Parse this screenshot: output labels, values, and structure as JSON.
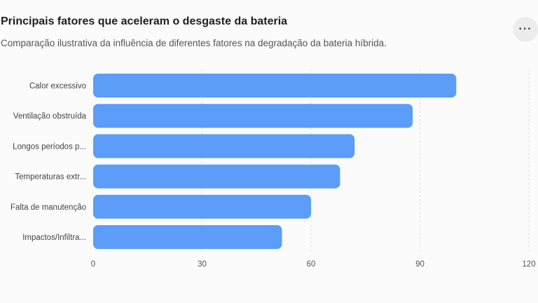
{
  "title": "Principais fatores que aceleram o desgaste da bateria",
  "subtitle": "Comparação ilustrativa da influência de diferentes fatores na degradação da bateria híbrida.",
  "menu": {
    "icon": "more-horizontal-icon",
    "label": "···"
  },
  "chart_data": {
    "type": "bar",
    "orientation": "horizontal",
    "categories": [
      "Calor excessivo",
      "Ventilação obstruída",
      "Longos períodos p...",
      "Temperaturas extr...",
      "Falta de manutenção",
      "Impactos/Infiltra..."
    ],
    "values": [
      100,
      88,
      72,
      68,
      60,
      52
    ],
    "xlim": [
      0,
      120
    ],
    "xticks": [
      0,
      30,
      60,
      90,
      120
    ],
    "grid": true,
    "bar_color": "#5b9df8",
    "legend": "none"
  }
}
